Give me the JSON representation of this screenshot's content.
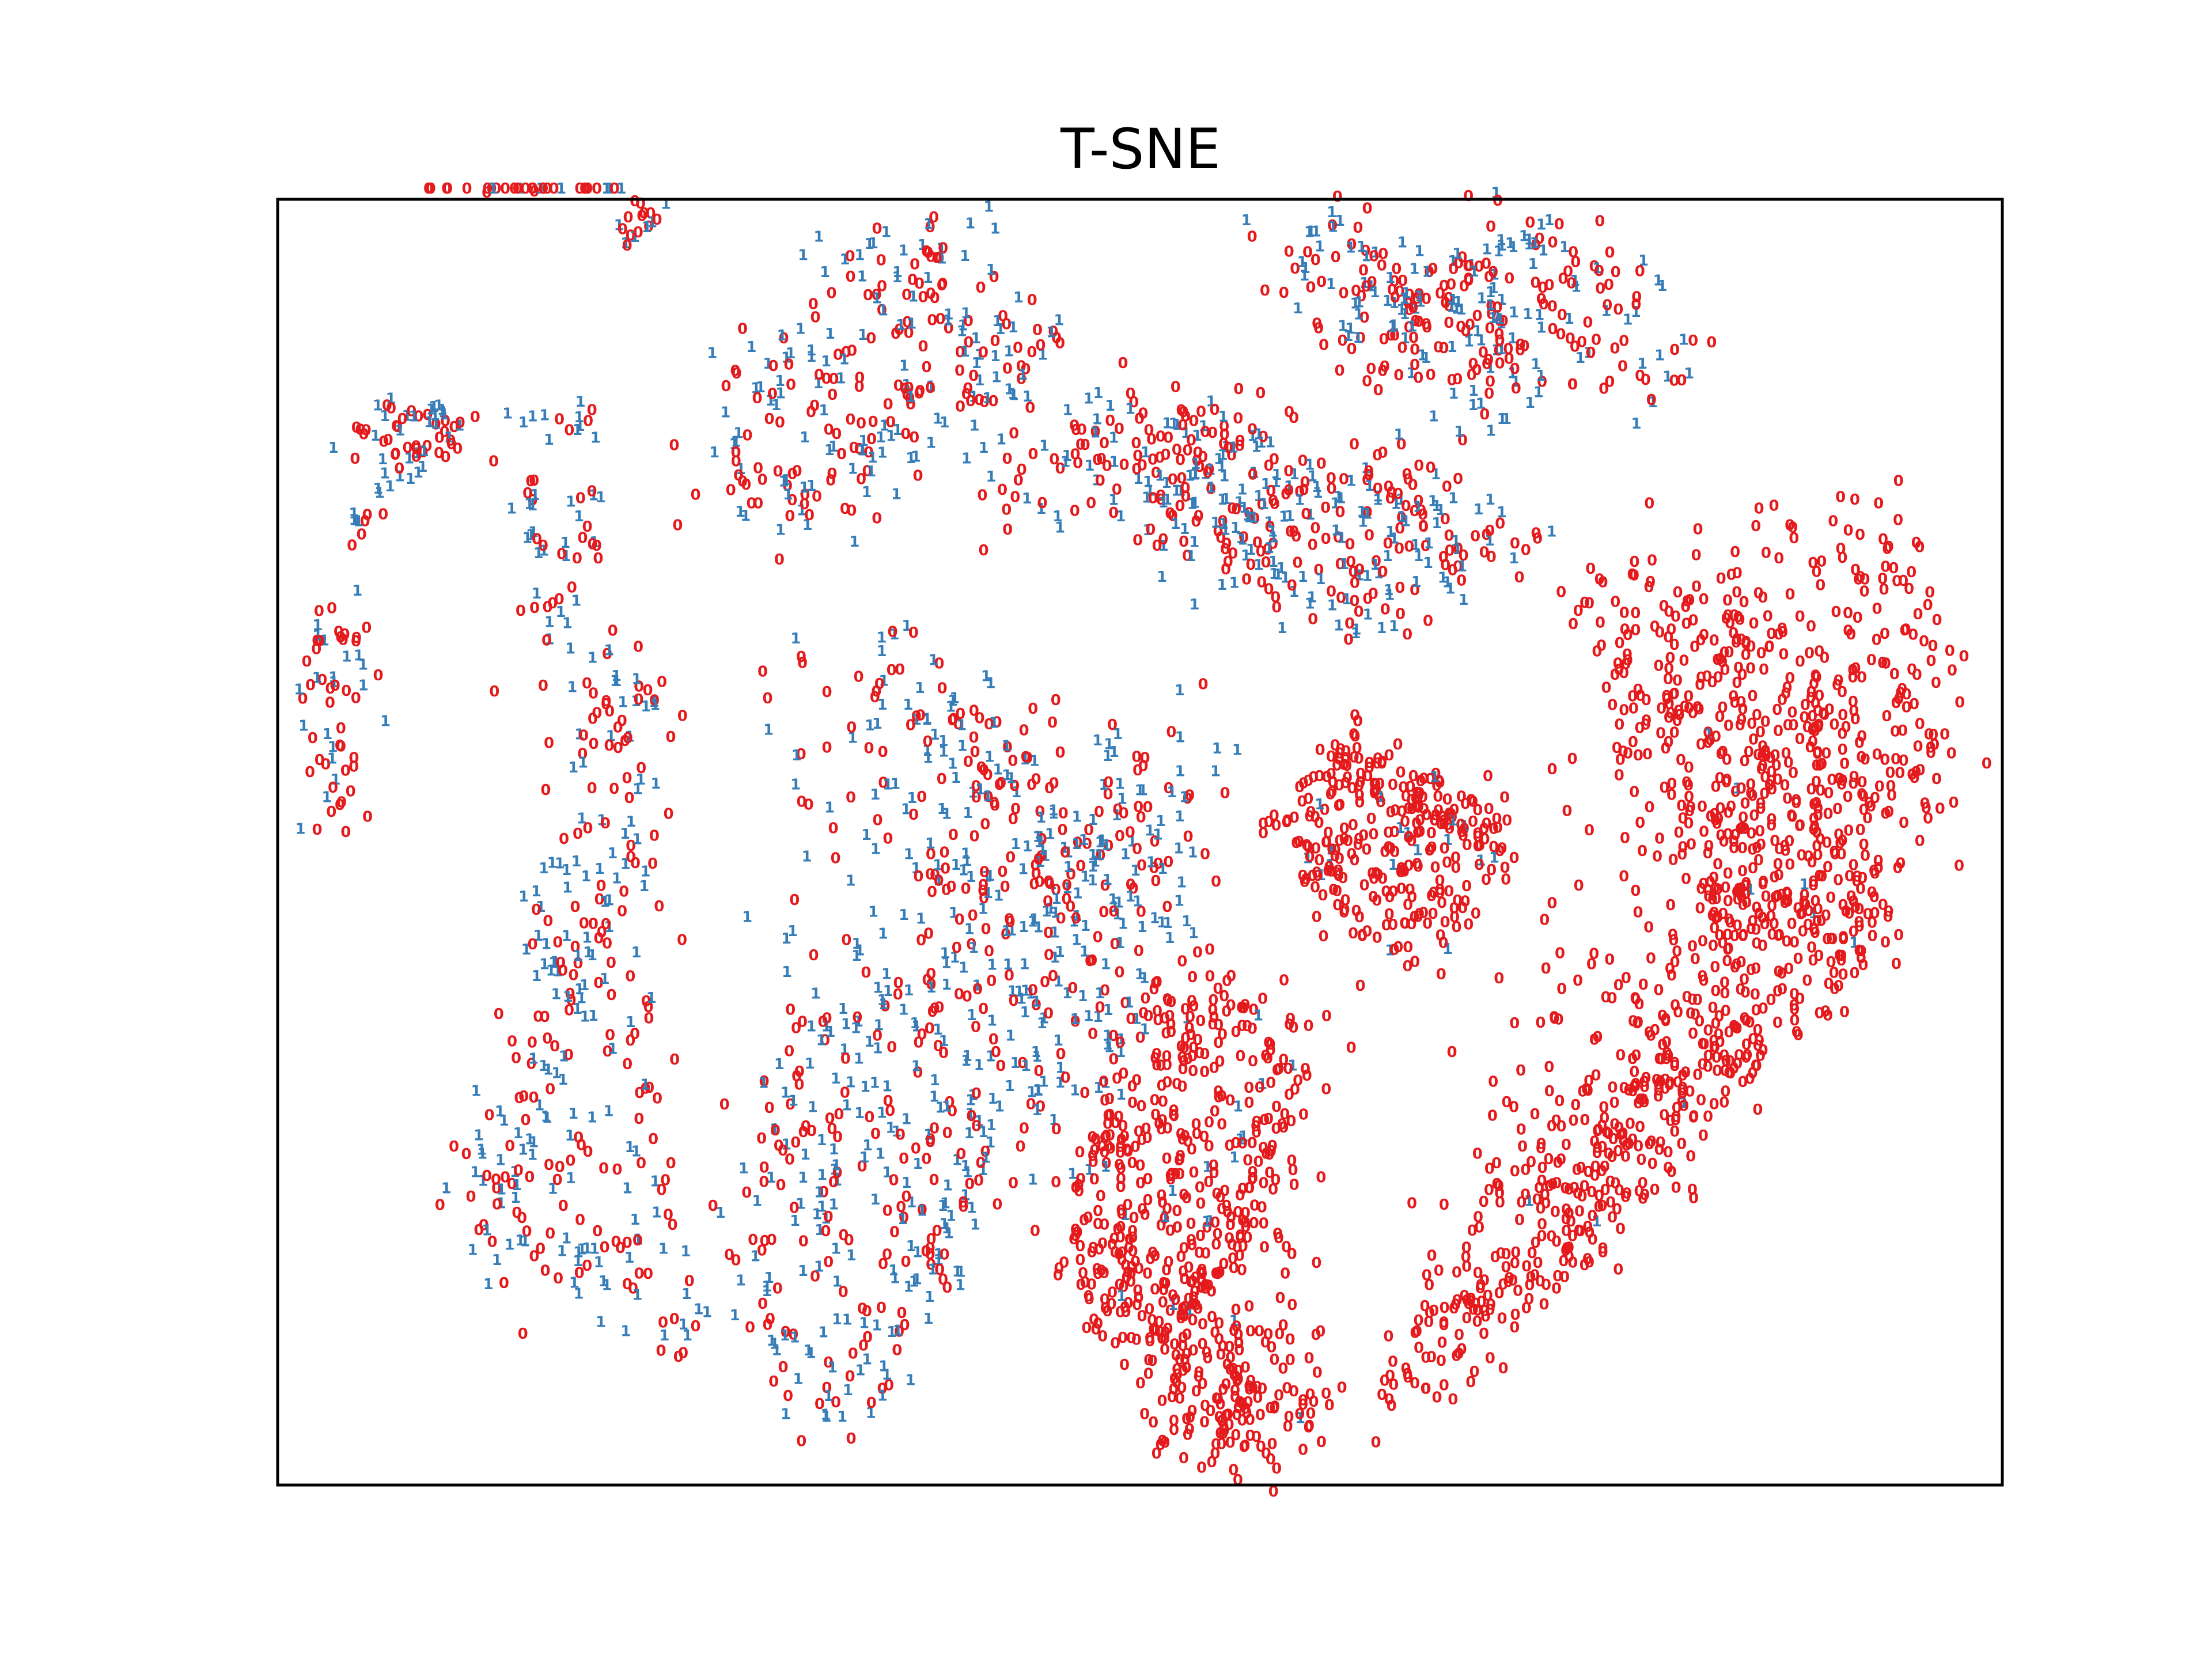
{
  "chart_data": {
    "type": "scatter",
    "title": "T-SNE",
    "xlabel": "",
    "ylabel": "",
    "xlim": [
      0,
      100
    ],
    "ylim": [
      0,
      75
    ],
    "grid": false,
    "ticks": false,
    "marker_style": "text-labels",
    "series": [
      {
        "name": "0",
        "label": "0",
        "color": "#e41a1c"
      },
      {
        "name": "1",
        "label": "1",
        "color": "#377eb8"
      }
    ],
    "clusters": [
      {
        "points": [
          [
            8.5,
            76.2
          ],
          [
            11.2,
            76.6
          ],
          [
            14.5,
            76.8
          ],
          [
            18.0,
            77.2
          ],
          [
            19.5,
            77.8
          ]
        ],
        "share1": 0.35,
        "count": 34,
        "spread": 1.1
      },
      {
        "points": [
          [
            0.8,
            0.8
          ]
        ],
        "share1": 0.5,
        "count": 0,
        "spread": 1.0
      },
      {
        "points": [
          [
            3.2,
            39.5
          ],
          [
            3.2,
            46.5
          ],
          [
            3.8,
            50.4
          ]
        ],
        "share1": 0.35,
        "count": 60,
        "spread": 1.7
      },
      {
        "points": [
          [
            6.0,
            61.5
          ],
          [
            9.0,
            60.8
          ]
        ],
        "share1": 0.45,
        "count": 45,
        "spread": 2.4
      },
      {
        "points": [
          [
            4.2,
            55.7
          ],
          [
            5.6,
            57.6
          ],
          [
            9.3,
            62.7
          ]
        ],
        "share1": 0.55,
        "count": 24,
        "spread": 1.0
      },
      {
        "points": [
          [
            9.2,
            60.5
          ],
          [
            11.0,
            62.5
          ]
        ],
        "share1": 0.55,
        "count": 8,
        "spread": 1.0
      },
      {
        "points": [
          [
            14.5,
            61.9
          ],
          [
            18.0,
            61.9
          ]
        ],
        "share1": 0.45,
        "count": 14,
        "spread": 0.9
      },
      {
        "points": [
          [
            14.5,
            57.9
          ],
          [
            18.5,
            57.5
          ]
        ],
        "share1": 0.5,
        "count": 14,
        "spread": 0.9
      },
      {
        "points": [
          [
            14.5,
            54.9
          ],
          [
            18.0,
            54.7
          ]
        ],
        "share1": 0.5,
        "count": 14,
        "spread": 0.9
      },
      {
        "points": [
          [
            20.0,
            72.5
          ],
          [
            21.5,
            74.0
          ]
        ],
        "share1": 0.3,
        "count": 18,
        "spread": 1.0
      },
      {
        "points": [
          [
            16.0,
            52.0
          ],
          [
            19.0,
            48.5
          ],
          [
            21.5,
            45.0
          ],
          [
            20.0,
            40.0
          ],
          [
            19.5,
            35.0
          ],
          [
            17.0,
            30.0
          ],
          [
            15.5,
            24.5
          ],
          [
            13.5,
            20.0
          ],
          [
            11.5,
            16.0
          ],
          [
            14.0,
            14.0
          ],
          [
            17.5,
            13.0
          ],
          [
            22.0,
            11.5
          ],
          [
            23.5,
            9.0
          ]
        ],
        "share1": 0.5,
        "count": 330,
        "spread": 2.4
      },
      {
        "points": [
          [
            28.0,
            66.0
          ],
          [
            30.5,
            65.5
          ],
          [
            33.0,
            71.5
          ],
          [
            37.0,
            70.5
          ],
          [
            40.0,
            72.5
          ],
          [
            42.0,
            68.5
          ],
          [
            44.5,
            66.0
          ],
          [
            41.5,
            63.0
          ],
          [
            37.0,
            61.5
          ],
          [
            33.5,
            58.5
          ],
          [
            30.0,
            57.0
          ],
          [
            26.0,
            59.0
          ]
        ],
        "share1": 0.45,
        "count": 270,
        "spread": 2.6
      },
      {
        "points": [
          [
            30.0,
            47.0
          ],
          [
            35.0,
            48.5
          ],
          [
            38.5,
            46.5
          ],
          [
            40.5,
            43.5
          ],
          [
            43.5,
            41.0
          ],
          [
            45.0,
            38.0
          ],
          [
            47.0,
            37.5
          ],
          [
            51.5,
            33.0
          ],
          [
            53.5,
            39.0
          ],
          [
            53.5,
            43.5
          ],
          [
            49.5,
            42.5
          ],
          [
            44.0,
            34.0
          ],
          [
            39.0,
            34.5
          ],
          [
            38.0,
            29.5
          ],
          [
            34.5,
            28.0
          ],
          [
            30.0,
            24.5
          ],
          [
            29.0,
            19.5
          ],
          [
            27.0,
            15.0
          ],
          [
            27.5,
            10.5
          ],
          [
            30.0,
            7.0
          ],
          [
            32.0,
            2.5
          ],
          [
            34.5,
            5.5
          ],
          [
            37.0,
            10.5
          ],
          [
            38.5,
            15.0
          ],
          [
            40.0,
            18.5
          ],
          [
            44.0,
            23.5
          ],
          [
            47.5,
            25.5
          ],
          [
            50.0,
            28.5
          ]
        ],
        "share1": 0.55,
        "count": 780,
        "spread": 2.6
      },
      {
        "points": [
          [
            42.0,
            59.0
          ],
          [
            47.0,
            61.0
          ],
          [
            51.5,
            56.5
          ],
          [
            55.0,
            54.5
          ],
          [
            58.5,
            52.0
          ],
          [
            63.0,
            51.0
          ],
          [
            67.5,
            53.5
          ],
          [
            71.5,
            55.0
          ],
          [
            66.0,
            58.0
          ],
          [
            60.0,
            59.0
          ],
          [
            54.5,
            61.0
          ],
          [
            50.0,
            62.5
          ]
        ],
        "share1": 0.45,
        "count": 420,
        "spread": 2.6
      },
      {
        "points": [
          [
            58.0,
            72.5
          ],
          [
            61.0,
            73.5
          ],
          [
            64.5,
            70.0
          ],
          [
            67.5,
            70.0
          ],
          [
            70.0,
            67.5
          ],
          [
            73.5,
            73.0
          ],
          [
            77.5,
            70.0
          ],
          [
            81.0,
            65.0
          ],
          [
            74.5,
            63.5
          ],
          [
            70.0,
            62.0
          ],
          [
            65.0,
            65.5
          ],
          [
            60.5,
            68.0
          ]
        ],
        "share1": 0.4,
        "count": 310,
        "spread": 2.4
      },
      {
        "points": [
          [
            59.0,
            38.5
          ],
          [
            62.0,
            42.5
          ],
          [
            66.0,
            40.5
          ],
          [
            68.5,
            39.5
          ],
          [
            70.0,
            36.5
          ],
          [
            67.5,
            32.5
          ],
          [
            64.0,
            31.0
          ],
          [
            61.0,
            35.0
          ]
        ],
        "share1": 0.06,
        "count": 310,
        "spread": 2.0
      },
      {
        "points": [
          [
            76.0,
            52.0
          ],
          [
            80.5,
            50.5
          ],
          [
            85.0,
            52.0
          ],
          [
            90.0,
            57.5
          ],
          [
            94.0,
            55.5
          ],
          [
            96.0,
            49.0
          ],
          [
            97.0,
            43.0
          ],
          [
            95.0,
            38.0
          ],
          [
            92.5,
            32.0
          ],
          [
            88.5,
            28.5
          ],
          [
            83.5,
            24.5
          ],
          [
            79.5,
            20.5
          ],
          [
            76.5,
            15.0
          ],
          [
            72.0,
            11.0
          ],
          [
            67.0,
            9.5
          ],
          [
            64.0,
            4.5
          ],
          [
            68.0,
            7.0
          ],
          [
            72.5,
            13.0
          ],
          [
            77.0,
            17.5
          ],
          [
            80.0,
            25.5
          ],
          [
            83.5,
            31.5
          ],
          [
            84.5,
            38.5
          ],
          [
            79.0,
            44.5
          ],
          [
            82.0,
            47.5
          ],
          [
            88.0,
            45.0
          ],
          [
            86.0,
            38.0
          ],
          [
            89.0,
            34.0
          ],
          [
            91.0,
            42.0
          ]
        ],
        "share1": 0.01,
        "count": 1150,
        "spread": 2.5
      },
      {
        "points": [
          [
            49.0,
            22.0
          ],
          [
            52.0,
            27.0
          ],
          [
            56.0,
            28.5
          ],
          [
            59.0,
            24.5
          ],
          [
            58.0,
            19.0
          ],
          [
            55.0,
            14.0
          ],
          [
            52.5,
            9.5
          ],
          [
            56.0,
            5.5
          ],
          [
            60.0,
            3.5
          ],
          [
            56.0,
            1.0
          ],
          [
            52.0,
            4.0
          ],
          [
            48.5,
            9.0
          ],
          [
            46.5,
            14.0
          ],
          [
            47.5,
            18.0
          ]
        ],
        "share1": 0.03,
        "count": 620,
        "spread": 2.2
      }
    ]
  }
}
